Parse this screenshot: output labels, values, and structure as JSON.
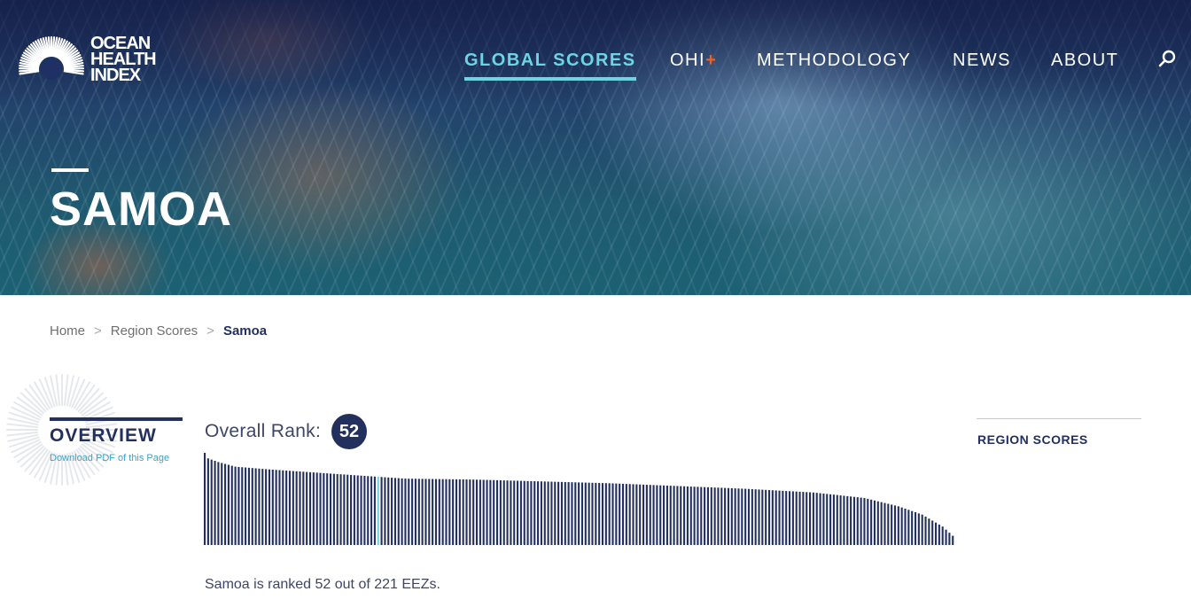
{
  "site": {
    "logo_text_line1": "OCEAN",
    "logo_text_line2": "HEALTH",
    "logo_text_line3": "INDEX"
  },
  "nav": {
    "items": [
      {
        "label": "GLOBAL SCORES",
        "active": true
      },
      {
        "label": "OHI",
        "suffix": "+"
      },
      {
        "label": "METHODOLOGY"
      },
      {
        "label": "NEWS"
      },
      {
        "label": "ABOUT"
      }
    ],
    "search_icon": "search-icon"
  },
  "hero": {
    "title": "SAMOA"
  },
  "breadcrumb": {
    "items": [
      {
        "label": "Home"
      },
      {
        "label": "Region Scores"
      },
      {
        "label": "Samoa",
        "current": true
      }
    ],
    "separator": ">"
  },
  "overview": {
    "title": "OVERVIEW",
    "pdf_link": "Download PDF of this Page",
    "rank_label": "Overall Rank:",
    "rank": "52",
    "sentence": "Samoa is ranked 52 out of 221 EEZs."
  },
  "sidebar": {
    "region_scores": "REGION SCORES"
  },
  "colors": {
    "navy": "#23305e",
    "accent_cyan": "#6fd3e2",
    "highlight_bar": "#6fd3e2",
    "plus_orange": "#e8622c"
  },
  "chart_data": {
    "type": "bar",
    "total": 221,
    "highlight_rank": 52,
    "values_desc_profile": [
      [
        1,
        100
      ],
      [
        2,
        94
      ],
      [
        5,
        90
      ],
      [
        10,
        85
      ],
      [
        20,
        82
      ],
      [
        40,
        77
      ],
      [
        52,
        74
      ],
      [
        60,
        72
      ],
      [
        80,
        71
      ],
      [
        100,
        69
      ],
      [
        120,
        67
      ],
      [
        140,
        64
      ],
      [
        160,
        61
      ],
      [
        180,
        57
      ],
      [
        195,
        51
      ],
      [
        205,
        42
      ],
      [
        212,
        33
      ],
      [
        218,
        20
      ],
      [
        221,
        10
      ]
    ]
  }
}
